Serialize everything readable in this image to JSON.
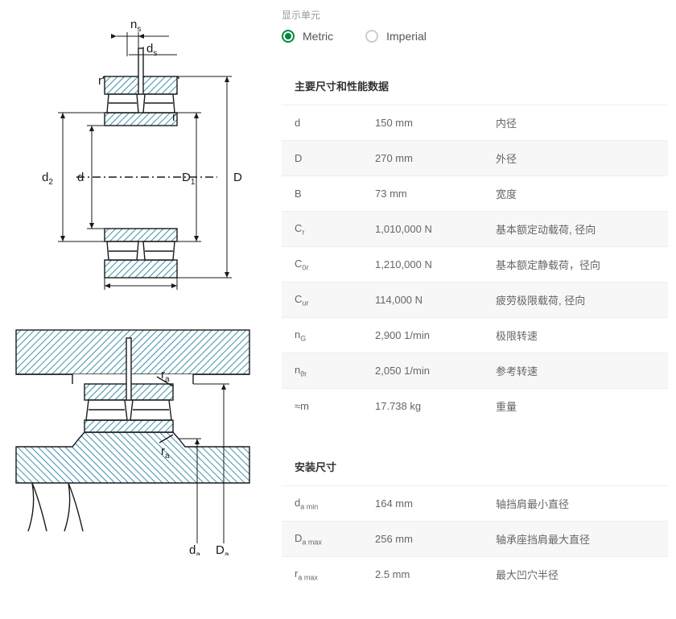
{
  "units": {
    "header": "显示单元",
    "metric": "Metric",
    "imperial": "Imperial"
  },
  "diagram1": {
    "labels": {
      "ns": "n",
      "ns_sub": "s",
      "ds": "d",
      "ds_sub": "s",
      "r1": "r",
      "r2": "r",
      "d2": "d",
      "d2_sub": "2",
      "d": "d",
      "D1": "D",
      "D1_sub": "1",
      "D": "D",
      "B": "B"
    }
  },
  "diagram2": {
    "labels": {
      "ra1": "r",
      "ra1_sub": "a",
      "ra2": "r",
      "ra2_sub": "a",
      "da": "d",
      "da_sub": "a",
      "Da": "D",
      "Da_sub": "a"
    }
  },
  "table1": {
    "header": "主要尺寸和性能数据",
    "rows": [
      {
        "sym": "d",
        "sub": "",
        "val": "150 mm",
        "desc": "内径"
      },
      {
        "sym": "D",
        "sub": "",
        "val": "270 mm",
        "desc": "外径"
      },
      {
        "sym": "B",
        "sub": "",
        "val": "73 mm",
        "desc": "宽度"
      },
      {
        "sym": "C",
        "sub": "r",
        "val": "1,010,000 N",
        "desc": "基本额定动载荷, 径向"
      },
      {
        "sym": "C",
        "sub": "0r",
        "val": "1,210,000 N",
        "desc": "基本额定静载荷，径向"
      },
      {
        "sym": "C",
        "sub": "ur",
        "val": "114,000 N",
        "desc": "疲劳极限载荷, 径向"
      },
      {
        "sym": "n",
        "sub": "G",
        "val": "2,900 1/min",
        "desc": "极限转速"
      },
      {
        "sym": "n",
        "sub": "ϑr",
        "val": "2,050 1/min",
        "desc": "参考转速"
      },
      {
        "sym": "≈m",
        "sub": "",
        "val": "17.738 kg",
        "desc": "重量"
      }
    ]
  },
  "table2": {
    "header": "安装尺寸",
    "rows": [
      {
        "sym": "d",
        "sub": "a min",
        "val": "164 mm",
        "desc": "轴挡肩最小直径"
      },
      {
        "sym": "D",
        "sub": "a max",
        "val": "256 mm",
        "desc": "轴承座挡肩最大直径"
      },
      {
        "sym": "r",
        "sub": "a max",
        "val": "2.5 mm",
        "desc": "最大凹穴半径"
      }
    ]
  },
  "colors": {
    "accent": "#00893d",
    "hatch": "#006b8f",
    "line": "#1a1a1a"
  }
}
